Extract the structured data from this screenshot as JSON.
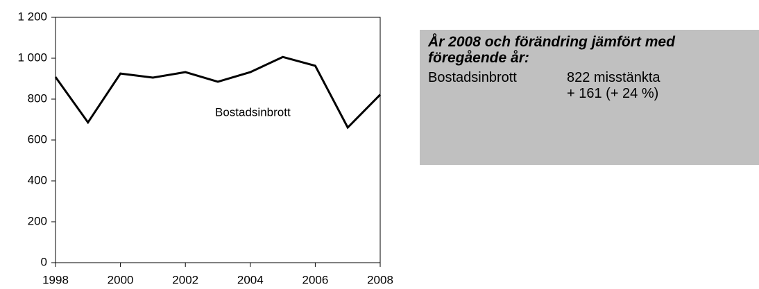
{
  "chart_data": {
    "type": "line",
    "x": [
      1998,
      1999,
      2000,
      2001,
      2002,
      2003,
      2004,
      2005,
      2006,
      2007,
      2008
    ],
    "series": [
      {
        "name": "Bostadsinbrott",
        "color": "#000000",
        "values": [
          908,
          686,
          925,
          905,
          932,
          885,
          932,
          1006,
          963,
          661,
          822
        ]
      }
    ],
    "xlim": [
      1998,
      2008
    ],
    "xticks": [
      1998,
      2000,
      2002,
      2004,
      2006,
      2008
    ],
    "ylim": [
      0,
      1200
    ],
    "yticks": [
      0,
      200,
      400,
      600,
      800,
      {
        "value": 1000,
        "label": "1 000"
      },
      {
        "value": 1200,
        "label": "1 200"
      }
    ],
    "grid": false
  },
  "info_box": {
    "title_lines": [
      "År 2008 och förändring jämfört med",
      "föregående år:"
    ],
    "label": "Bostadsinbrott",
    "lines": [
      "822 misstänkta",
      "+ 161 (+ 24 %)"
    ]
  }
}
